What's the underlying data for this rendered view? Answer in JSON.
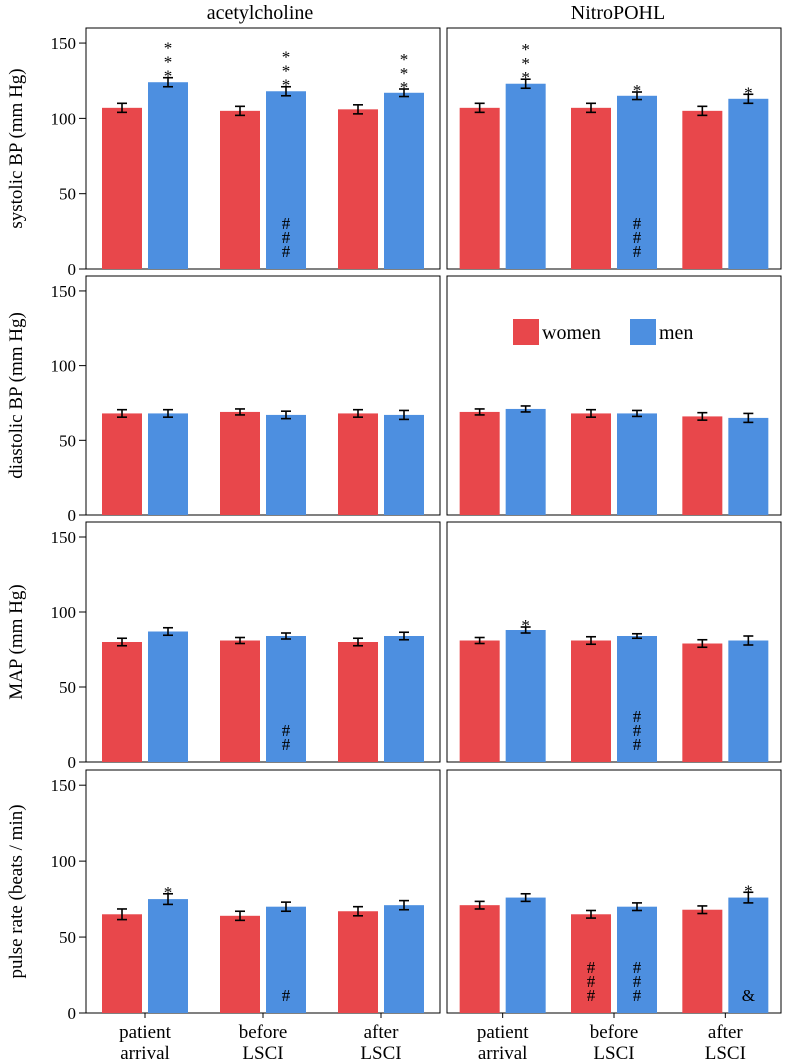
{
  "chart_data": {
    "type": "bar",
    "layout": "grid 4 rows x 2 columns",
    "columns": [
      "acetylcholine",
      "NitroPOHL"
    ],
    "categories": [
      [
        "patient",
        "arrival"
      ],
      [
        "before",
        "LSCI"
      ],
      [
        "after",
        "LSCI"
      ]
    ],
    "legend": [
      {
        "name": "women",
        "color": "#e8474b"
      },
      {
        "name": "men",
        "color": "#4d8fe0"
      }
    ],
    "legend_position": "center (second row, right panel)",
    "ylim": [
      0,
      160
    ],
    "yticks": [
      0,
      50,
      100,
      150
    ],
    "rows": [
      {
        "ylabel": "systolic BP (mm Hg)",
        "panels": [
          {
            "women": [
              107,
              105,
              106
            ],
            "men": [
              124,
              118,
              117
            ],
            "women_err": [
              3,
              3,
              3
            ],
            "men_err": [
              3,
              3,
              2.5
            ],
            "annotations": [
              {
                "cat": 0,
                "series": "men",
                "pos": "above",
                "text": [
                  "*",
                  "*",
                  "*"
                ]
              },
              {
                "cat": 1,
                "series": "men",
                "pos": "above",
                "text": [
                  "*",
                  "*",
                  "*"
                ]
              },
              {
                "cat": 2,
                "series": "men",
                "pos": "above",
                "text": [
                  "*",
                  "*",
                  "*"
                ]
              },
              {
                "cat": 1,
                "series": "men",
                "pos": "inside",
                "text": [
                  "#",
                  "#",
                  "#"
                ]
              }
            ]
          },
          {
            "women": [
              107,
              107,
              105
            ],
            "men": [
              123,
              115,
              113
            ],
            "women_err": [
              3,
              3,
              3
            ],
            "men_err": [
              3,
              2.5,
              3
            ],
            "annotations": [
              {
                "cat": 0,
                "series": "men",
                "pos": "above",
                "text": [
                  "*",
                  "*",
                  "*"
                ]
              },
              {
                "cat": 1,
                "series": "men",
                "pos": "above",
                "text": [
                  "*"
                ]
              },
              {
                "cat": 2,
                "series": "men",
                "pos": "above",
                "text": [
                  "*"
                ]
              },
              {
                "cat": 1,
                "series": "men",
                "pos": "inside",
                "text": [
                  "#",
                  "#",
                  "#"
                ]
              }
            ]
          }
        ]
      },
      {
        "ylabel": "diastolic BP (mm Hg)",
        "panels": [
          {
            "women": [
              68,
              69,
              68
            ],
            "men": [
              68,
              67,
              67
            ],
            "women_err": [
              2.5,
              2,
              2.5
            ],
            "men_err": [
              2.5,
              2.5,
              3
            ],
            "annotations": []
          },
          {
            "women": [
              69,
              68,
              66
            ],
            "men": [
              71,
              68,
              65
            ],
            "women_err": [
              2,
              2.5,
              2.5
            ],
            "men_err": [
              2,
              2,
              3
            ],
            "annotations": []
          }
        ]
      },
      {
        "ylabel": "MAP (mm Hg)",
        "panels": [
          {
            "women": [
              80,
              81,
              80
            ],
            "men": [
              87,
              84,
              84
            ],
            "women_err": [
              2.5,
              2,
              2.5
            ],
            "men_err": [
              2.5,
              2,
              2.5
            ],
            "annotations": [
              {
                "cat": 1,
                "series": "men",
                "pos": "inside",
                "text": [
                  "#",
                  "#"
                ]
              }
            ]
          },
          {
            "women": [
              81,
              81,
              79
            ],
            "men": [
              88,
              84,
              81
            ],
            "women_err": [
              2,
              2.5,
              2.5
            ],
            "men_err": [
              2,
              1.5,
              3
            ],
            "annotations": [
              {
                "cat": 0,
                "series": "men",
                "pos": "above",
                "text": [
                  "*"
                ]
              },
              {
                "cat": 1,
                "series": "men",
                "pos": "inside",
                "text": [
                  "#",
                  "#",
                  "#"
                ]
              }
            ]
          }
        ]
      },
      {
        "ylabel": "pulse rate (beats / min)",
        "panels": [
          {
            "women": [
              65,
              64,
              67
            ],
            "men": [
              75,
              70,
              71
            ],
            "women_err": [
              3.5,
              3,
              3
            ],
            "men_err": [
              3.5,
              3,
              3
            ],
            "annotations": [
              {
                "cat": 0,
                "series": "men",
                "pos": "above",
                "text": [
                  "*"
                ]
              },
              {
                "cat": 1,
                "series": "men",
                "pos": "inside",
                "text": [
                  "#"
                ]
              }
            ]
          },
          {
            "women": [
              71,
              65,
              68
            ],
            "men": [
              76,
              70,
              76
            ],
            "women_err": [
              2.5,
              2.5,
              2.5
            ],
            "men_err": [
              2.5,
              2.5,
              3.5
            ],
            "annotations": [
              {
                "cat": 2,
                "series": "men",
                "pos": "above",
                "text": [
                  "*"
                ]
              },
              {
                "cat": 1,
                "series": "women",
                "pos": "inside",
                "text": [
                  "#",
                  "#",
                  "#"
                ]
              },
              {
                "cat": 1,
                "series": "men",
                "pos": "inside",
                "text": [
                  "#",
                  "#",
                  "#"
                ]
              },
              {
                "cat": 2,
                "series": "men",
                "pos": "inside",
                "text": [
                  "&"
                ]
              }
            ]
          }
        ]
      }
    ]
  }
}
